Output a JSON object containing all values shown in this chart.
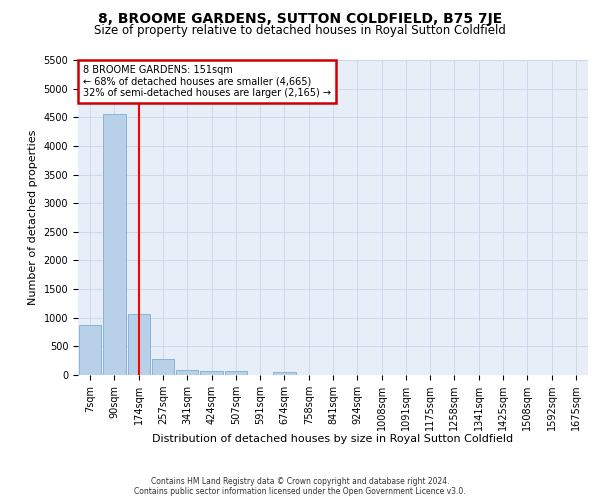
{
  "title": "8, BROOME GARDENS, SUTTON COLDFIELD, B75 7JE",
  "subtitle": "Size of property relative to detached houses in Royal Sutton Coldfield",
  "xlabel": "Distribution of detached houses by size in Royal Sutton Coldfield",
  "ylabel": "Number of detached properties",
  "categories": [
    "7sqm",
    "90sqm",
    "174sqm",
    "257sqm",
    "341sqm",
    "424sqm",
    "507sqm",
    "591sqm",
    "674sqm",
    "758sqm",
    "841sqm",
    "924sqm",
    "1008sqm",
    "1091sqm",
    "1175sqm",
    "1258sqm",
    "1341sqm",
    "1425sqm",
    "1508sqm",
    "1592sqm",
    "1675sqm"
  ],
  "values": [
    880,
    4550,
    1060,
    280,
    90,
    75,
    75,
    0,
    55,
    0,
    0,
    0,
    0,
    0,
    0,
    0,
    0,
    0,
    0,
    0,
    0
  ],
  "bar_color": "#b8d0e8",
  "bar_edge_color": "#7aafd4",
  "red_line_index": 2,
  "annotation_text": "8 BROOME GARDENS: 151sqm\n← 68% of detached houses are smaller (4,665)\n32% of semi-detached houses are larger (2,165) →",
  "annotation_box_color": "#ffffff",
  "annotation_box_edge_color": "#cc0000",
  "footer_line1": "Contains HM Land Registry data © Crown copyright and database right 2024.",
  "footer_line2": "Contains public sector information licensed under the Open Government Licence v3.0.",
  "ylim": [
    0,
    5500
  ],
  "yticks": [
    0,
    500,
    1000,
    1500,
    2000,
    2500,
    3000,
    3500,
    4000,
    4500,
    5000,
    5500
  ],
  "bg_color": "#ffffff",
  "axes_bg_color": "#e8eef8",
  "grid_color": "#c8d4e8",
  "title_fontsize": 10,
  "subtitle_fontsize": 8.5,
  "axis_label_fontsize": 8,
  "tick_fontsize": 7,
  "annotation_fontsize": 7
}
